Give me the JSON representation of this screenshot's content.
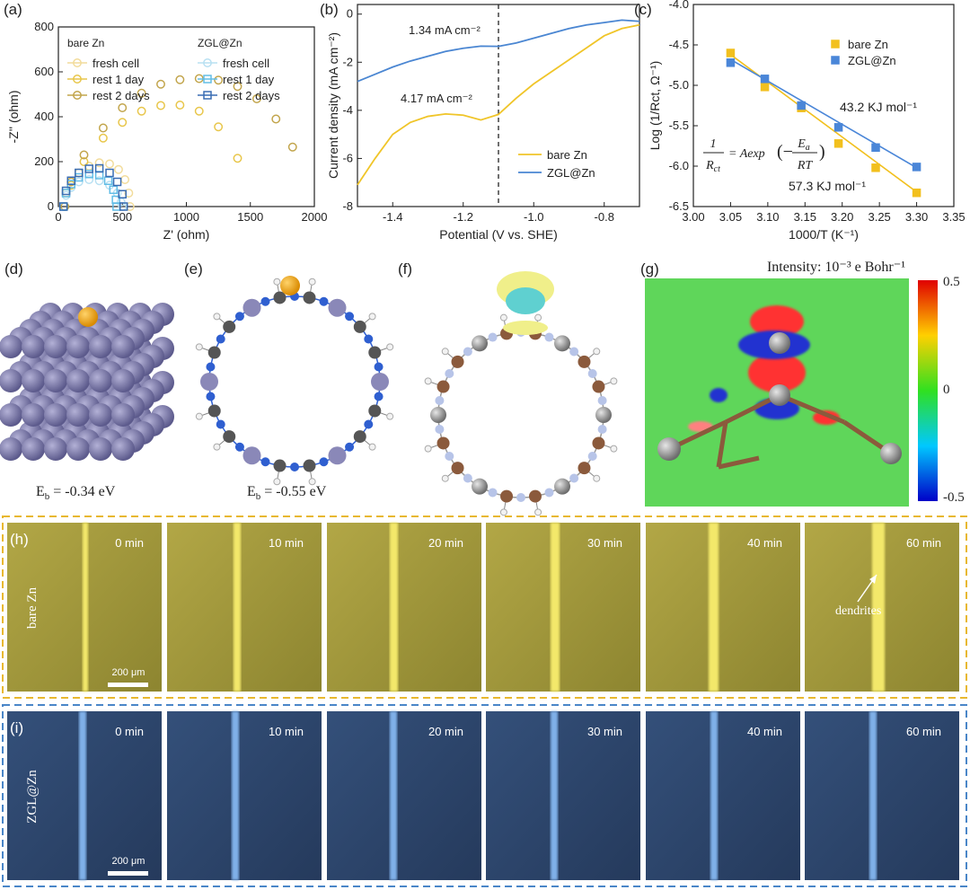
{
  "chart_data": [
    {
      "type": "scatter",
      "xlabel": "Z' (ohm)",
      "ylabel": "-Z'' (ohm)",
      "xlim": [
        0,
        2000
      ],
      "xticks": [
        0,
        500,
        1000,
        1500,
        2000
      ],
      "ylim": [
        0,
        800
      ],
      "yticks": [
        0,
        200,
        400,
        600,
        800
      ],
      "legend": "upper left",
      "series_groups": [
        {
          "name": "bare Zn",
          "series": [
            {
              "name": "fresh cell",
              "color": "#f2dc9b",
              "marker": "circle",
              "x": [
                40,
                60,
                100,
                160,
                240,
                320,
                400,
                470,
                520,
                550,
                560
              ],
              "values": [
                0,
                60,
                110,
                150,
                180,
                195,
                190,
                165,
                120,
                60,
                0
              ]
            },
            {
              "name": "rest 1 day",
              "color": "#e8c64a",
              "marker": "circle",
              "x": [
                50,
                100,
                200,
                350,
                500,
                650,
                800,
                950,
                1100,
                1250,
                1400
              ],
              "values": [
                0,
                95,
                200,
                305,
                375,
                425,
                450,
                452,
                425,
                355,
                215
              ]
            },
            {
              "name": "rest 2 days",
              "color": "#c2a54c",
              "marker": "circle",
              "x": [
                50,
                100,
                200,
                350,
                500,
                650,
                800,
                950,
                1100,
                1250,
                1400,
                1550,
                1700,
                1830
              ],
              "values": [
                0,
                110,
                230,
                350,
                440,
                505,
                545,
                565,
                570,
                563,
                535,
                480,
                390,
                265
              ]
            }
          ]
        },
        {
          "name": "ZGL@Zn",
          "series": [
            {
              "name": "fresh cell",
              "color": "#b8e0f2",
              "marker": "circle",
              "x": [
                40,
                60,
                100,
                160,
                240,
                320,
                400,
                460,
                490,
                500
              ],
              "values": [
                0,
                50,
                85,
                110,
                120,
                115,
                95,
                60,
                20,
                0
              ]
            },
            {
              "name": "rest 1 day",
              "color": "#62bde6",
              "marker": "square",
              "x": [
                40,
                60,
                100,
                160,
                240,
                320,
                390,
                430,
                450,
                455
              ],
              "values": [
                0,
                60,
                100,
                130,
                145,
                140,
                115,
                75,
                30,
                0
              ]
            },
            {
              "name": "rest 2 days",
              "color": "#3a6db3",
              "marker": "square",
              "x": [
                40,
                60,
                100,
                160,
                240,
                320,
                400,
                460,
                500,
                510
              ],
              "values": [
                0,
                70,
                115,
                150,
                168,
                170,
                150,
                110,
                55,
                0
              ]
            }
          ]
        }
      ]
    },
    {
      "type": "line",
      "xlabel": "Potential (V vs. SHE)",
      "ylabel": "Current density (mA cm⁻²)",
      "xlim": [
        -1.5,
        -0.7
      ],
      "xticks": [
        -1.4,
        -1.2,
        {
          "value": -1,
          "label": "-1.0"
        },
        -0.8
      ],
      "ylim": [
        -8,
        0.4
      ],
      "yticks": [
        -8,
        -6,
        -4,
        -2,
        0
      ],
      "legend": "lower right",
      "vline": -1.1,
      "x": [
        -1.5,
        -1.45,
        -1.4,
        -1.35,
        -1.3,
        -1.25,
        -1.2,
        -1.15,
        -1.1,
        -1.05,
        -1.0,
        -0.95,
        -0.9,
        -0.85,
        -0.8,
        -0.75,
        -0.7
      ],
      "series": [
        {
          "name": "bare Zn",
          "color": "#f0c529",
          "values": [
            -7.1,
            -6.0,
            -5.0,
            -4.5,
            -4.25,
            -4.15,
            -4.2,
            -4.4,
            -4.17,
            -3.5,
            -2.9,
            -2.4,
            -1.9,
            -1.4,
            -0.9,
            -0.6,
            -0.45
          ]
        },
        {
          "name": "ZGL@Zn",
          "color": "#4a86d2",
          "values": [
            -2.8,
            -2.5,
            -2.2,
            -1.95,
            -1.75,
            -1.55,
            -1.42,
            -1.33,
            -1.34,
            -1.2,
            -1.0,
            -0.8,
            -0.6,
            -0.45,
            -0.35,
            -0.25,
            -0.3
          ]
        }
      ],
      "annotations": [
        {
          "text": "1.34 mA cm⁻²",
          "color": "#4a86d2"
        },
        {
          "text": "4.17 mA cm⁻²",
          "color": "#e6b820"
        }
      ]
    },
    {
      "type": "scatter",
      "xlabel": "1000/T (K⁻¹)",
      "ylabel": "Log (1/Rct, Ω⁻¹)",
      "xlim": [
        3.0,
        3.35
      ],
      "xticks": [
        {
          "value": 3,
          "label": "3.00"
        },
        3.05,
        {
          "value": 3.1,
          "label": "3.10"
        },
        3.15,
        {
          "value": 3.2,
          "label": "3.20"
        },
        3.25,
        {
          "value": 3.3,
          "label": "3.30"
        },
        3.35
      ],
      "ylim": [
        -6.5,
        -4.0
      ],
      "yticks": [
        -6.5,
        {
          "value": -6,
          "label": "-6.0"
        },
        -5.5,
        {
          "value": -5,
          "label": "-5.0"
        },
        -4.5,
        {
          "value": -4,
          "label": "-4.0"
        }
      ],
      "legend": "upper right",
      "x": [
        3.05,
        3.096,
        3.145,
        3.195,
        3.245,
        3.3
      ],
      "series": [
        {
          "name": "bare Zn",
          "color": "#f2c01e",
          "marker": "square",
          "values": [
            -4.6,
            -5.02,
            -5.28,
            -5.72,
            -6.02,
            -6.33
          ],
          "fit": {
            "x": [
              3.05,
              3.3
            ],
            "values": [
              -4.62,
              -6.32
            ]
          }
        },
        {
          "name": "ZGL@Zn",
          "color": "#4a86d8",
          "marker": "square",
          "values": [
            -4.72,
            -4.92,
            -5.25,
            -5.52,
            -5.77,
            -6.01
          ],
          "fit": {
            "x": [
              3.05,
              3.3
            ],
            "values": [
              -4.68,
              -6.02
            ]
          }
        }
      ],
      "annotations": [
        {
          "text": "43.2 KJ mol⁻¹",
          "color": "#4a86d8"
        },
        {
          "text": "57.3 KJ mol⁻¹",
          "color": "#e6b820"
        }
      ],
      "equation": {
        "lhs_num": "1",
        "lhs_den": "R",
        "lhs_den_sub": "ct",
        "rhs": "= Aexp",
        "open": "(−",
        "num": "E",
        "num_sub": "a",
        "den": "RT",
        "close": ")"
      }
    }
  ],
  "panel_labels": [
    "(a)",
    "(b)",
    "(c)",
    "(d)",
    "(e)",
    "(f)",
    "(g)",
    "(h)",
    "(i)"
  ],
  "panels": {
    "d": {
      "symbol": "E",
      "subscript": "b",
      "text": " = -0.34 eV"
    },
    "e": {
      "symbol": "E",
      "subscript": "b",
      "text": " = -0.55 eV"
    },
    "g": {
      "title": "Intensity: 10⁻³ e Bohr⁻¹",
      "colorbar_ticks": [
        0.5,
        0,
        -0.5
      ]
    },
    "h": {
      "sample": "bare Zn",
      "times": [
        "0 min",
        "10 min",
        "20 min",
        "30 min",
        "40 min",
        "60 min"
      ],
      "annotation": "dendrites",
      "scale_bar": "200 μm"
    },
    "i": {
      "sample": "ZGL@Zn",
      "times": [
        "0 min",
        "10 min",
        "20 min",
        "30 min",
        "40 min",
        "60 min"
      ],
      "scale_bar": "200 μm"
    }
  }
}
